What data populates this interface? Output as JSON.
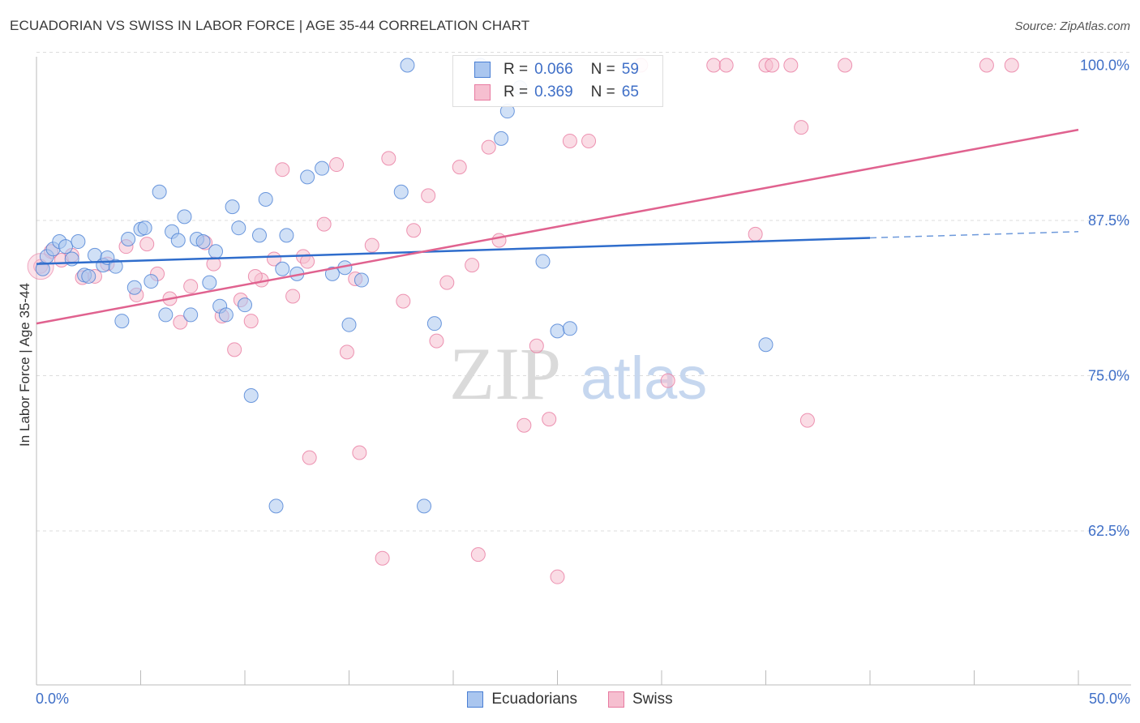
{
  "title": "ECUADORIAN VS SWISS IN LABOR FORCE | AGE 35-44 CORRELATION CHART",
  "source": "Source: ZipAtlas.com",
  "watermark": {
    "zip": "ZIP",
    "atlas": "atlas"
  },
  "colors": {
    "blue": "#4a7fd4",
    "blue_fill": "#aac6ef",
    "blue_line": "#2f6dcc",
    "pink": "#e87aa0",
    "pink_fill": "#f6bfd0",
    "pink_line": "#e0628f",
    "tick_text": "#3f6fc7",
    "grid": "#dcdcdc"
  },
  "legend": {
    "rows": [
      {
        "r_label": "R =",
        "r_value": "0.066",
        "n_label": "N =",
        "n_value": "59"
      },
      {
        "r_label": "R =",
        "r_value": "0.369",
        "n_label": "N =",
        "n_value": "65"
      }
    ]
  },
  "bottom_legend": [
    "Ecuadorians",
    "Swiss"
  ],
  "chart_data": {
    "type": "scatter",
    "title": "ECUADORIAN VS SWISS IN LABOR FORCE | AGE 35-44 CORRELATION CHART",
    "xlabel": "",
    "ylabel": "In Labor Force | Age 35-44",
    "xlim": [
      0,
      50
    ],
    "ylim": [
      50,
      102
    ],
    "x_tick_labels": [
      "0.0%",
      "50.0%"
    ],
    "y_ticks": [
      62.5,
      75.0,
      87.5,
      100.0
    ],
    "y_tick_labels": [
      "62.5%",
      "75.0%",
      "87.5%",
      "100.0%"
    ],
    "grid": true,
    "series": [
      {
        "name": "Ecuadorians",
        "R": 0.066,
        "N": 59,
        "trend": {
          "x": [
            0,
            40
          ],
          "y": [
            84.0,
            86.1
          ],
          "dashed_to": [
            50,
            86.6
          ]
        },
        "points": [
          [
            0.3,
            83.6
          ],
          [
            0.5,
            84.6
          ],
          [
            0.8,
            85.2
          ],
          [
            1.1,
            85.8
          ],
          [
            1.4,
            85.4
          ],
          [
            1.7,
            84.4
          ],
          [
            2.0,
            85.8
          ],
          [
            2.3,
            83.1
          ],
          [
            2.5,
            83.0
          ],
          [
            2.8,
            84.7
          ],
          [
            3.2,
            83.9
          ],
          [
            3.4,
            84.5
          ],
          [
            3.8,
            83.8
          ],
          [
            4.1,
            79.4
          ],
          [
            4.4,
            86.0
          ],
          [
            4.7,
            82.1
          ],
          [
            5.0,
            86.8
          ],
          [
            5.2,
            86.9
          ],
          [
            5.5,
            82.6
          ],
          [
            5.9,
            89.8
          ],
          [
            6.2,
            79.9
          ],
          [
            6.5,
            86.6
          ],
          [
            6.8,
            85.9
          ],
          [
            7.1,
            87.8
          ],
          [
            7.4,
            79.9
          ],
          [
            7.7,
            86.0
          ],
          [
            8.0,
            85.8
          ],
          [
            8.3,
            82.5
          ],
          [
            8.6,
            85.0
          ],
          [
            8.8,
            80.6
          ],
          [
            9.1,
            79.9
          ],
          [
            9.4,
            88.6
          ],
          [
            9.7,
            86.9
          ],
          [
            10.0,
            80.7
          ],
          [
            10.3,
            73.4
          ],
          [
            10.7,
            86.3
          ],
          [
            11.0,
            89.2
          ],
          [
            11.5,
            64.5
          ],
          [
            11.8,
            83.6
          ],
          [
            12.0,
            86.3
          ],
          [
            12.5,
            83.2
          ],
          [
            13.0,
            91.0
          ],
          [
            13.7,
            91.7
          ],
          [
            14.2,
            83.2
          ],
          [
            14.8,
            83.7
          ],
          [
            15.0,
            79.1
          ],
          [
            15.6,
            82.7
          ],
          [
            17.5,
            89.8
          ],
          [
            17.8,
            100.0
          ],
          [
            18.6,
            64.5
          ],
          [
            19.1,
            79.2
          ],
          [
            21.3,
            100.0
          ],
          [
            22.3,
            94.1
          ],
          [
            22.6,
            96.3
          ],
          [
            23.2,
            98.2
          ],
          [
            24.3,
            84.2
          ],
          [
            25.0,
            78.6
          ],
          [
            25.6,
            78.8
          ],
          [
            35.0,
            77.5
          ]
        ]
      },
      {
        "name": "Swiss",
        "R": 0.369,
        "N": 65,
        "trend": {
          "x": [
            0,
            50
          ],
          "y": [
            79.2,
            94.8
          ]
        },
        "points": [
          [
            0.2,
            83.8
          ],
          [
            0.7,
            85.0
          ],
          [
            1.2,
            84.3
          ],
          [
            1.7,
            84.7
          ],
          [
            2.2,
            82.9
          ],
          [
            2.8,
            83.0
          ],
          [
            3.4,
            84.0
          ],
          [
            4.3,
            85.4
          ],
          [
            4.8,
            81.5
          ],
          [
            5.3,
            85.6
          ],
          [
            5.8,
            83.2
          ],
          [
            6.4,
            81.2
          ],
          [
            6.9,
            79.3
          ],
          [
            7.4,
            82.2
          ],
          [
            8.1,
            85.7
          ],
          [
            8.5,
            84.0
          ],
          [
            8.9,
            79.8
          ],
          [
            9.5,
            77.1
          ],
          [
            9.8,
            81.1
          ],
          [
            10.3,
            79.4
          ],
          [
            10.8,
            82.7
          ],
          [
            11.4,
            84.4
          ],
          [
            11.8,
            91.6
          ],
          [
            12.3,
            81.4
          ],
          [
            12.8,
            84.6
          ],
          [
            13.1,
            68.4
          ],
          [
            13.8,
            87.2
          ],
          [
            14.4,
            92.0
          ],
          [
            14.9,
            76.9
          ],
          [
            15.3,
            82.8
          ],
          [
            15.5,
            68.8
          ],
          [
            16.1,
            85.5
          ],
          [
            16.6,
            60.3
          ],
          [
            16.9,
            92.5
          ],
          [
            17.6,
            81.0
          ],
          [
            18.1,
            86.7
          ],
          [
            18.8,
            89.5
          ],
          [
            19.2,
            77.8
          ],
          [
            19.7,
            82.5
          ],
          [
            20.3,
            91.8
          ],
          [
            20.9,
            83.9
          ],
          [
            21.2,
            60.6
          ],
          [
            21.7,
            93.4
          ],
          [
            22.2,
            85.9
          ],
          [
            23.4,
            71.0
          ],
          [
            24.0,
            77.4
          ],
          [
            24.6,
            71.5
          ],
          [
            25.0,
            58.8
          ],
          [
            25.6,
            93.9
          ],
          [
            26.5,
            93.9
          ],
          [
            30.3,
            74.6
          ],
          [
            32.5,
            100.0
          ],
          [
            33.1,
            100.0
          ],
          [
            34.5,
            86.4
          ],
          [
            35.0,
            100.0
          ],
          [
            35.3,
            100.0
          ],
          [
            36.2,
            100.0
          ],
          [
            36.7,
            95.0
          ],
          [
            37.0,
            71.4
          ],
          [
            38.8,
            100.0
          ],
          [
            45.6,
            100.0
          ],
          [
            46.8,
            100.0
          ],
          [
            29.0,
            100.0
          ],
          [
            13.0,
            84.2
          ],
          [
            10.5,
            83.0
          ]
        ]
      }
    ]
  }
}
